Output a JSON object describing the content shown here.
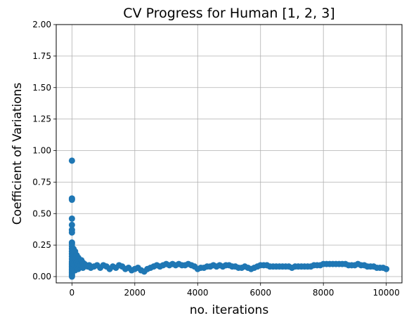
{
  "chart_data": {
    "type": "scatter",
    "title": "CV Progress for Human [1, 2, 3]",
    "xlabel": "no. iterations",
    "ylabel": "Coefficient of Variations",
    "xlim": [
      -500,
      10500
    ],
    "ylim": [
      -0.05,
      2.0
    ],
    "xticks": [
      0,
      2000,
      4000,
      6000,
      8000,
      10000
    ],
    "xtick_labels": [
      "0",
      "2000",
      "4000",
      "6000",
      "8000",
      "10000"
    ],
    "yticks": [
      0.0,
      0.25,
      0.5,
      0.75,
      1.0,
      1.25,
      1.5,
      1.75,
      2.0
    ],
    "ytick_labels": [
      "0.00",
      "0.25",
      "0.50",
      "0.75",
      "1.00",
      "1.25",
      "1.50",
      "1.75",
      "2.00"
    ],
    "grid": true,
    "color": "#1f77b4",
    "series": [
      {
        "x": [
          0,
          0,
          0,
          0,
          0,
          0,
          0,
          0,
          0,
          0,
          0,
          0,
          0,
          0,
          0,
          0,
          0,
          0,
          0,
          0,
          0,
          0,
          0,
          0,
          0,
          0,
          0,
          0,
          50,
          50,
          50,
          50,
          100,
          100,
          100,
          100,
          150,
          150,
          150,
          200,
          200,
          200,
          250,
          250,
          300,
          300,
          350,
          350,
          400,
          450,
          500,
          550,
          600,
          700,
          800,
          900,
          1000,
          1100,
          1200,
          1300,
          1400,
          1500,
          1600,
          1700,
          1800,
          1900,
          2000,
          2100,
          2200,
          2300,
          2400,
          2500,
          2600,
          2700,
          2800,
          2900,
          3000,
          3100,
          3200,
          3300,
          3400,
          3500,
          3600,
          3700,
          3800,
          3900,
          4000,
          4100,
          4200,
          4300,
          4400,
          4500,
          4600,
          4700,
          4800,
          4900,
          5000,
          5100,
          5200,
          5300,
          5400,
          5500,
          5600,
          5700,
          5800,
          5900,
          6000,
          6100,
          6200,
          6300,
          6400,
          6500,
          6600,
          6700,
          6800,
          6900,
          7000,
          7100,
          7200,
          7300,
          7400,
          7500,
          7600,
          7700,
          7800,
          7900,
          8000,
          8100,
          8200,
          8300,
          8400,
          8500,
          8600,
          8700,
          8800,
          8900,
          9000,
          9100,
          9200,
          9300,
          9400,
          9500,
          9600,
          9700,
          9800,
          9900,
          10000
        ],
        "y": [
          0.92,
          0.62,
          0.61,
          0.46,
          0.41,
          0.37,
          0.35,
          0.27,
          0.26,
          0.24,
          0.22,
          0.2,
          0.18,
          0.16,
          0.14,
          0.12,
          0.1,
          0.09,
          0.08,
          0.07,
          0.06,
          0.05,
          0.04,
          0.03,
          0.02,
          0.01,
          0.0,
          0.11,
          0.22,
          0.15,
          0.1,
          0.06,
          0.2,
          0.14,
          0.09,
          0.05,
          0.17,
          0.11,
          0.07,
          0.15,
          0.1,
          0.06,
          0.12,
          0.08,
          0.13,
          0.08,
          0.11,
          0.07,
          0.1,
          0.09,
          0.08,
          0.09,
          0.07,
          0.08,
          0.09,
          0.07,
          0.09,
          0.08,
          0.06,
          0.08,
          0.07,
          0.09,
          0.08,
          0.06,
          0.07,
          0.05,
          0.06,
          0.07,
          0.05,
          0.04,
          0.06,
          0.07,
          0.08,
          0.09,
          0.08,
          0.09,
          0.1,
          0.09,
          0.1,
          0.09,
          0.1,
          0.09,
          0.09,
          0.1,
          0.09,
          0.08,
          0.06,
          0.07,
          0.07,
          0.08,
          0.08,
          0.09,
          0.08,
          0.09,
          0.08,
          0.09,
          0.09,
          0.08,
          0.08,
          0.07,
          0.07,
          0.08,
          0.07,
          0.06,
          0.07,
          0.08,
          0.09,
          0.09,
          0.09,
          0.08,
          0.08,
          0.08,
          0.08,
          0.08,
          0.08,
          0.08,
          0.07,
          0.08,
          0.08,
          0.08,
          0.08,
          0.08,
          0.08,
          0.09,
          0.09,
          0.09,
          0.1,
          0.1,
          0.1,
          0.1,
          0.1,
          0.1,
          0.1,
          0.1,
          0.09,
          0.09,
          0.09,
          0.1,
          0.09,
          0.09,
          0.08,
          0.08,
          0.08,
          0.07,
          0.07,
          0.07,
          0.06
        ]
      }
    ]
  }
}
